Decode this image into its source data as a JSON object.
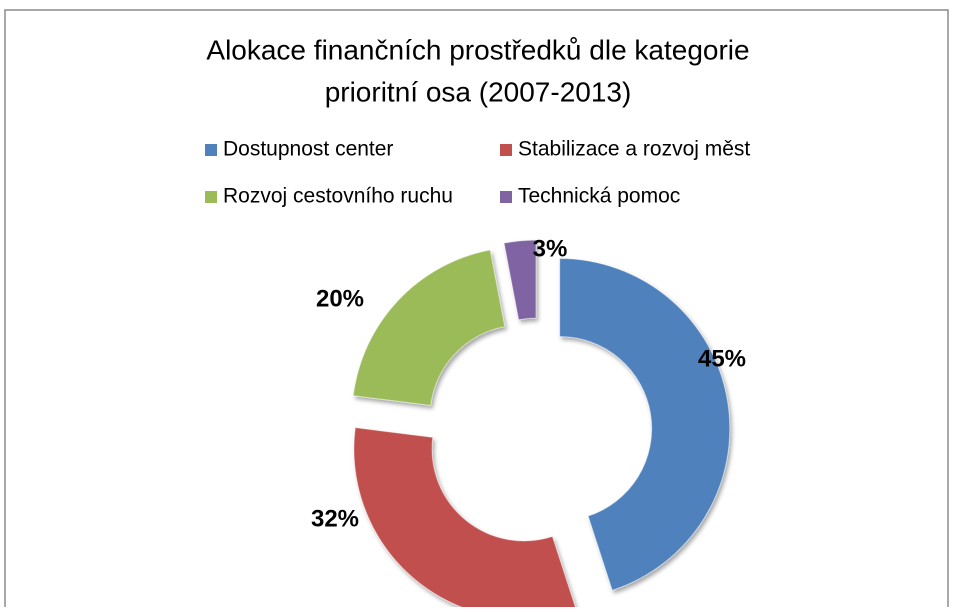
{
  "chart_data": {
    "type": "donut",
    "title": [
      "Alokace finančních prostředků dle kategorie",
      "prioritní osa (2007-2013)"
    ],
    "categories": [
      "Dostupnost center",
      "Stabilizace a rozvoj měst",
      "Rozvoj cestovního ruchu",
      "Technická pomoc"
    ],
    "values": [
      45,
      32,
      20,
      3
    ],
    "value_labels": [
      "45%",
      "32%",
      "20%",
      "3%"
    ],
    "colors": [
      "#4f81bd",
      "#c0504d",
      "#9bbb59",
      "#8064a2"
    ],
    "legend": "top"
  }
}
